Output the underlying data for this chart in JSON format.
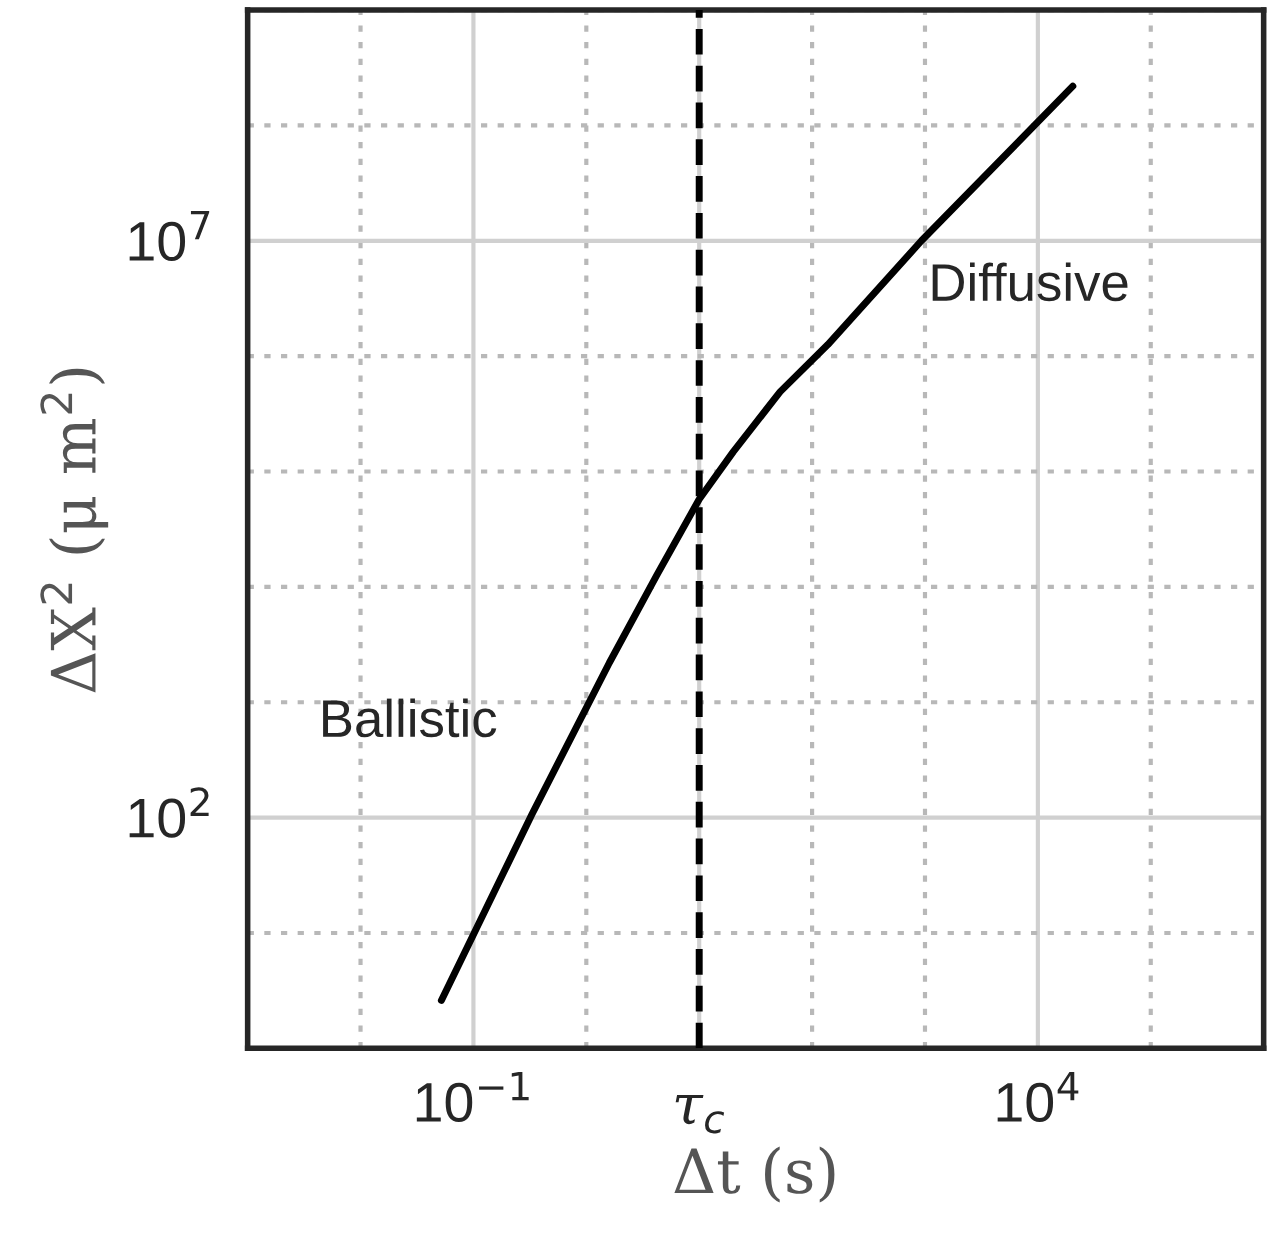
{
  "chart_data": {
    "type": "line",
    "xlabel": "Δt (s)",
    "ylabel": "ΔX$^{2}$ (μ m$^{2}$)",
    "log": "xy",
    "x": [
      0.052,
      0.33,
      1.6,
      4.2,
      10,
      20,
      52,
      138,
      930,
      20400
    ],
    "series": [
      {
        "color": "#000000",
        "values": [
          2.6,
          107,
          2200,
          12600,
          57500,
          148000,
          490000,
          1260000,
          10000000,
          219000000
        ]
      }
    ],
    "line_style": "solid",
    "marker": "none",
    "xlim": [
      0.001,
      1000000
    ],
    "ylim": [
      1,
      1000000000
    ],
    "xticks": [
      {
        "value": 0.001,
        "label": null
      },
      {
        "value": 0.01,
        "label": null
      },
      {
        "value": 0.1,
        "label": "10$^{−1}$"
      },
      {
        "value": 1,
        "label": null
      },
      {
        "value": 10,
        "label": "τ$_{c}$"
      },
      {
        "value": 100,
        "label": null
      },
      {
        "value": 1000,
        "label": null
      },
      {
        "value": 10000,
        "label": "10$^{4}$"
      },
      {
        "value": 100000,
        "label": null
      },
      {
        "value": 1000000,
        "label": null
      }
    ],
    "yticks": [
      {
        "value": 1,
        "label": null
      },
      {
        "value": 10,
        "label": null
      },
      {
        "value": 100,
        "label": "10$^{2}$"
      },
      {
        "value": 1000,
        "label": null
      },
      {
        "value": 10000,
        "label": null
      },
      {
        "value": 100000,
        "label": null
      },
      {
        "value": 1000000,
        "label": null
      },
      {
        "value": 10000000,
        "label": "10$^{7}$"
      },
      {
        "value": 100000000,
        "label": null
      },
      {
        "value": 1000000000,
        "label": null
      }
    ],
    "grid": true,
    "ref_lines": [
      {
        "axis": "x",
        "value": 10,
        "color": "#000000",
        "line_style": "dashed"
      }
    ],
    "annotations": [
      "Ballistic",
      "Diffusive"
    ]
  }
}
